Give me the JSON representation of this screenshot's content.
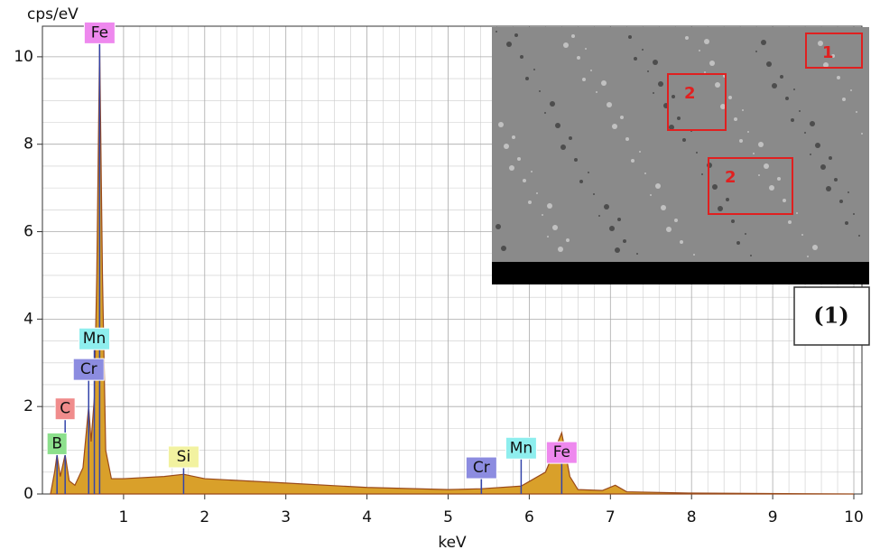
{
  "chart_data": {
    "type": "area",
    "y_label": "cps/eV",
    "x_label": "keV",
    "xlim": [
      0,
      10.1
    ],
    "ylim": [
      0,
      10.7
    ],
    "xticks": [
      1,
      2,
      3,
      4,
      5,
      6,
      7,
      8,
      9,
      10
    ],
    "yticks": [
      0,
      2,
      4,
      6,
      8,
      10
    ],
    "grid": true,
    "minor_divisions": {
      "x": 5,
      "y": 4
    },
    "color": "#d9a02a",
    "edge_color": "#9a4a1a",
    "x": [
      0.1,
      0.15,
      0.18,
      0.22,
      0.28,
      0.33,
      0.4,
      0.5,
      0.55,
      0.57,
      0.6,
      0.64,
      0.67,
      0.705,
      0.74,
      0.78,
      0.85,
      1.0,
      1.5,
      1.74,
      2.0,
      3.0,
      4.0,
      5.0,
      5.41,
      5.9,
      6.2,
      6.4,
      6.5,
      6.6,
      6.9,
      7.06,
      7.2,
      8.0,
      10.0
    ],
    "values": [
      0,
      0.5,
      0.9,
      0.4,
      0.9,
      0.3,
      0.2,
      0.6,
      1.6,
      2.0,
      1.2,
      2.2,
      5.0,
      10.3,
      5.0,
      1.0,
      0.35,
      0.35,
      0.4,
      0.45,
      0.35,
      0.25,
      0.15,
      0.1,
      0.12,
      0.18,
      0.5,
      1.4,
      0.4,
      0.1,
      0.08,
      0.2,
      0.05,
      0.02,
      0
    ],
    "elements": [
      {
        "label": "Fe",
        "x": 0.705,
        "y": 10.3,
        "color": "#ee88ee"
      },
      {
        "label": "Mn",
        "x": 0.64,
        "y": 3.3,
        "color": "#8eeeee"
      },
      {
        "label": "Cr",
        "x": 0.57,
        "y": 2.6,
        "color": "#8c8ce0"
      },
      {
        "label": "C",
        "x": 0.28,
        "y": 1.7,
        "color": "#f08c8c"
      },
      {
        "label": "B",
        "x": 0.18,
        "y": 0.9,
        "color": "#8ce08c"
      },
      {
        "label": "Si",
        "x": 1.74,
        "y": 0.6,
        "color": "#f2f2a0"
      },
      {
        "label": "Cr",
        "x": 5.41,
        "y": 0.35,
        "color": "#8c8ce0"
      },
      {
        "label": "Mn",
        "x": 5.9,
        "y": 0.8,
        "color": "#8eeeee"
      },
      {
        "label": "Fe",
        "x": 6.4,
        "y": 0.7,
        "color": "#ee88ee"
      }
    ]
  },
  "inset": {
    "regions": [
      "1",
      "2",
      "2"
    ],
    "caption": "(1)"
  }
}
